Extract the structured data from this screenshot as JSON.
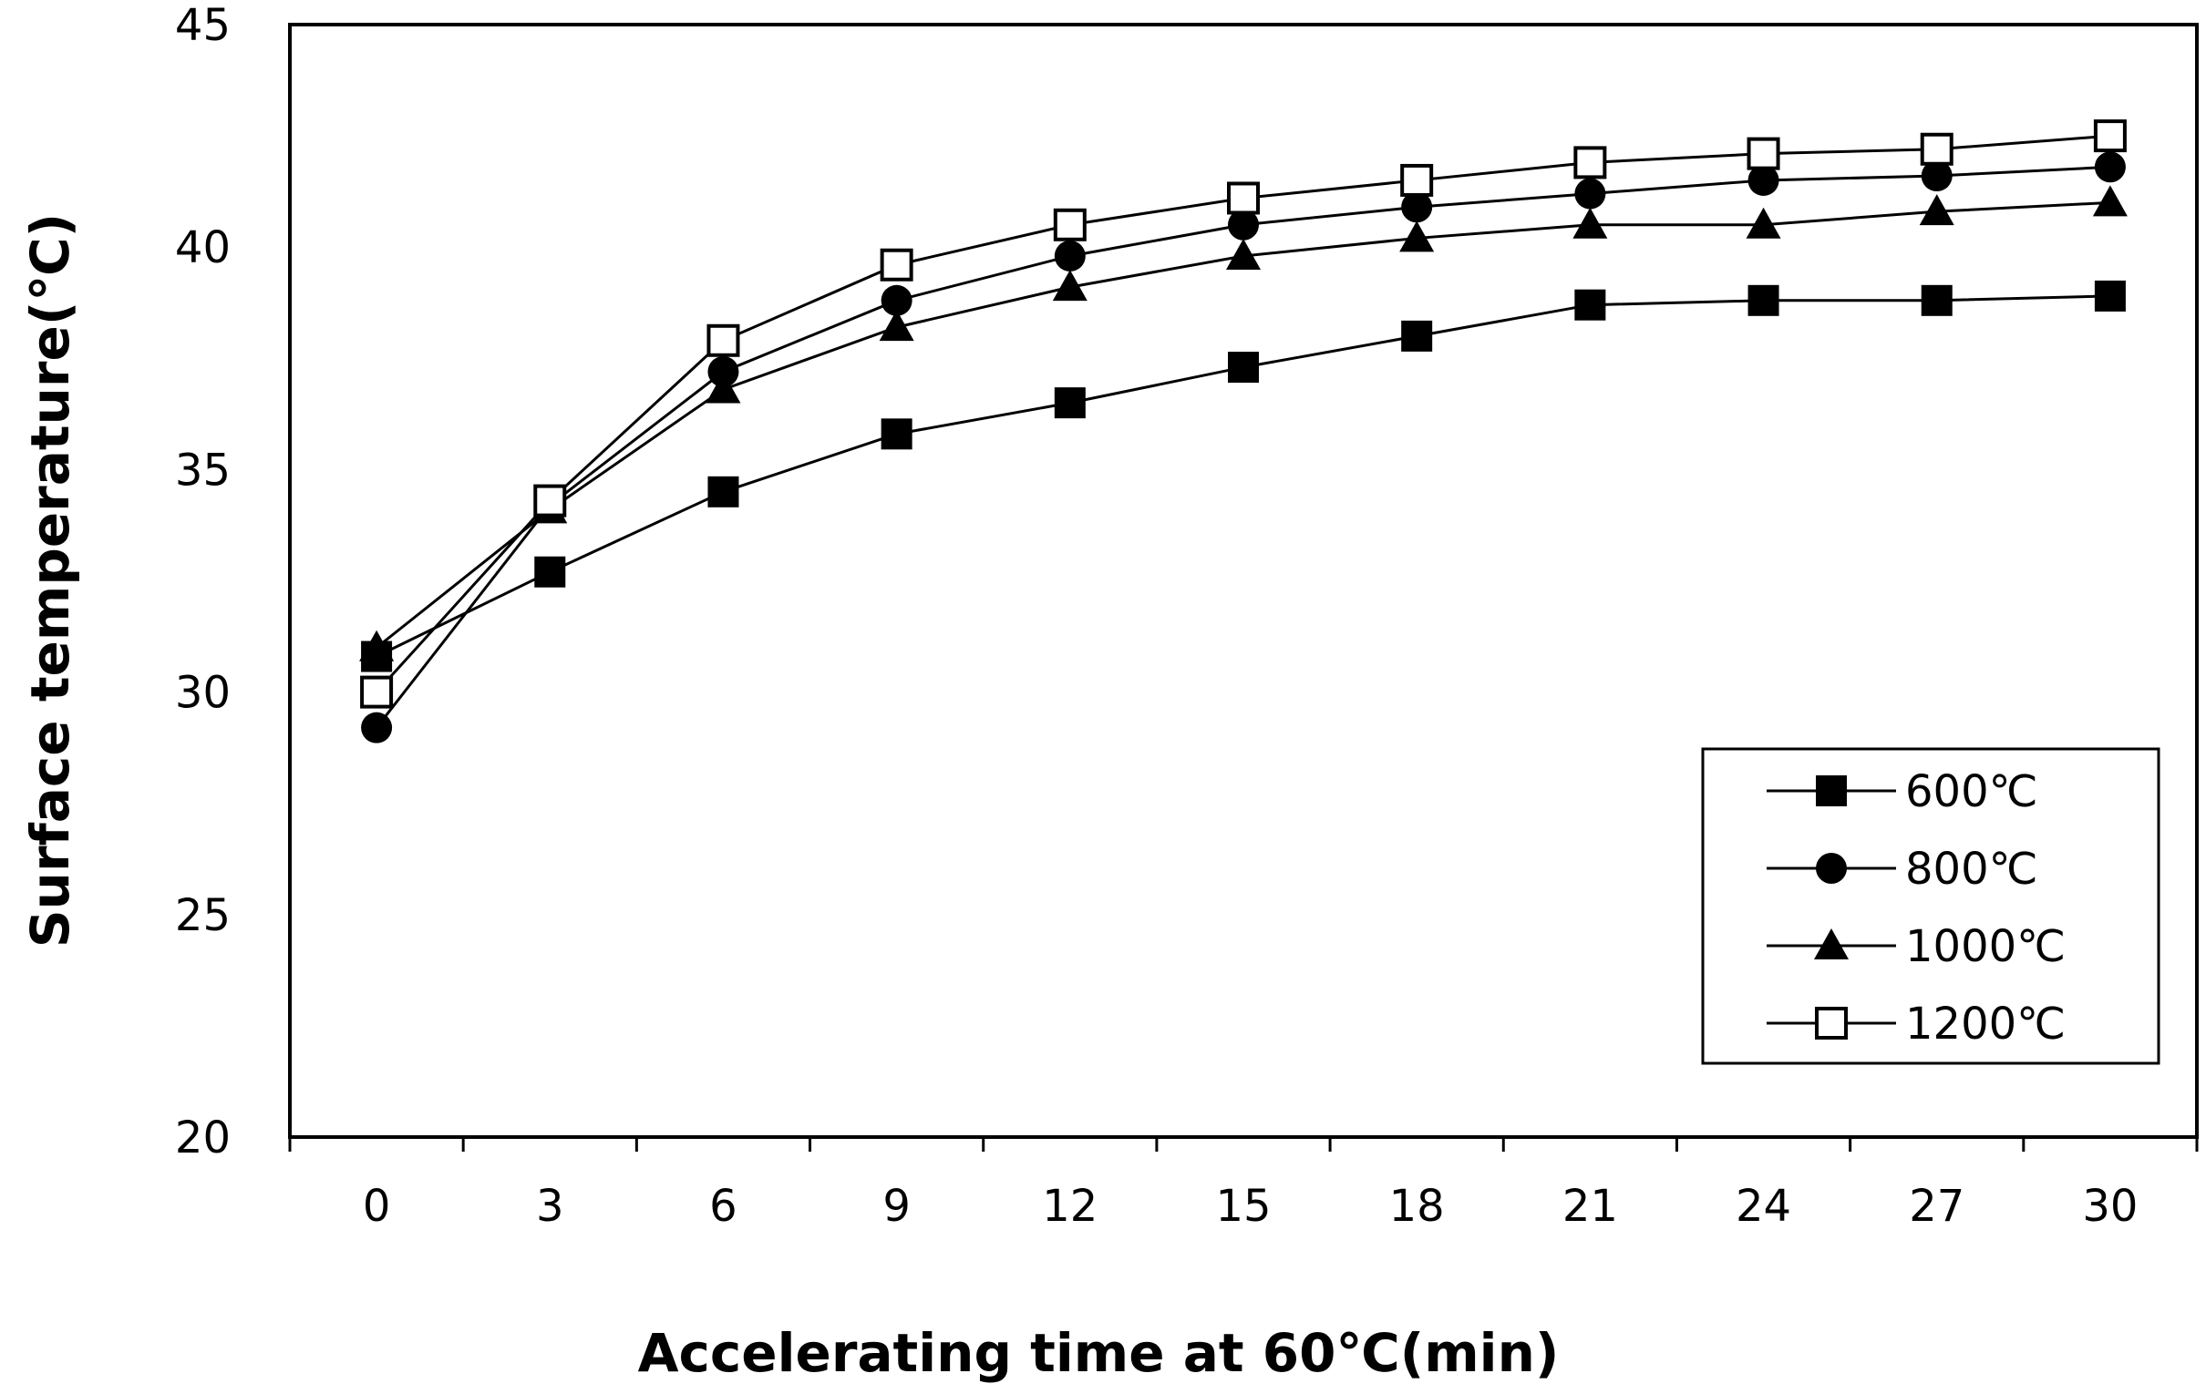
{
  "chart_data": {
    "type": "line",
    "xlabel": "Accelerating time at 60℃(min)",
    "ylabel": "Surface temperature(℃)",
    "x": [
      0,
      3,
      6,
      9,
      12,
      15,
      18,
      21,
      24,
      27,
      30
    ],
    "xlim": [
      -1.5,
      31.5
    ],
    "ylim": [
      20,
      45
    ],
    "yticks": [
      20,
      25,
      30,
      35,
      40,
      45
    ],
    "grid": false,
    "legend_position": "bottom-right",
    "series": [
      {
        "name": "600℃",
        "marker": "square-filled",
        "values": [
          30.8,
          32.7,
          34.5,
          35.8,
          36.5,
          37.3,
          38.0,
          38.7,
          38.8,
          38.8,
          38.9
        ]
      },
      {
        "name": "800℃",
        "marker": "circle-filled",
        "values": [
          29.2,
          34.2,
          37.2,
          38.8,
          39.8,
          40.5,
          40.9,
          41.2,
          41.5,
          41.6,
          41.8
        ]
      },
      {
        "name": "1000℃",
        "marker": "triangle-filled",
        "values": [
          31.0,
          34.1,
          36.8,
          38.2,
          39.1,
          39.8,
          40.2,
          40.5,
          40.5,
          40.8,
          41.0
        ]
      },
      {
        "name": "1200℃",
        "marker": "square-open",
        "values": [
          30.0,
          34.3,
          37.9,
          39.6,
          40.5,
          41.1,
          41.5,
          41.9,
          42.1,
          42.2,
          42.5
        ]
      }
    ]
  }
}
